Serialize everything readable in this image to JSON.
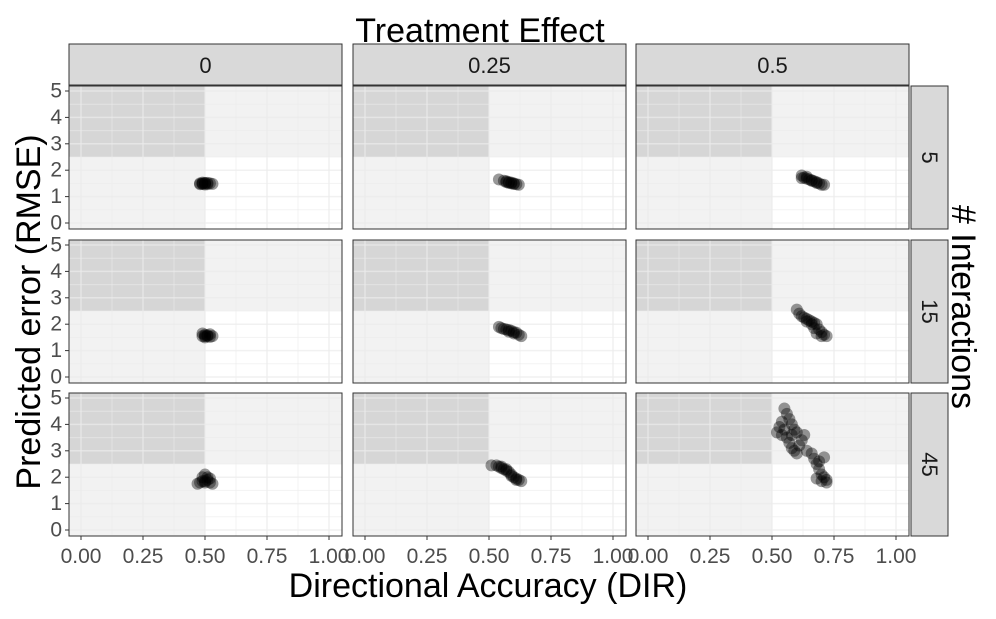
{
  "chart_data": {
    "type": "scatter",
    "facet_col_title": "Treatment Effect",
    "facet_row_title": "# Interactions",
    "xlabel": "Directional Accuracy (DIR)",
    "ylabel": "Predicted error (RMSE)",
    "xlim": [
      0,
      1
    ],
    "ylim": [
      0,
      5
    ],
    "x_ticks": [
      "0.00",
      "0.25",
      "0.50",
      "0.75",
      "1.00"
    ],
    "y_ticks": [
      "0",
      "1",
      "2",
      "3",
      "4",
      "5"
    ],
    "shaded_region": {
      "x": [
        0,
        0.5
      ],
      "y_from": 2.5
    },
    "column_labels": [
      "0",
      "0.25",
      "0.5"
    ],
    "row_labels": [
      "5",
      "15",
      "45"
    ],
    "grid": true,
    "colors": {
      "panel_bg": "#ffffff",
      "light_shade": "#f2f2f2",
      "dark_shade": "#d6d6d6",
      "strip_bg": "#d9d9d9",
      "grid": "#ebebeb",
      "point": "#000000"
    },
    "panels": [
      {
        "row": "5",
        "col": "0",
        "points": [
          [
            0.48,
            1.5
          ],
          [
            0.49,
            1.48
          ],
          [
            0.5,
            1.52
          ],
          [
            0.51,
            1.47
          ],
          [
            0.49,
            1.53
          ],
          [
            0.5,
            1.46
          ],
          [
            0.52,
            1.5
          ],
          [
            0.48,
            1.47
          ],
          [
            0.5,
            1.5
          ],
          [
            0.51,
            1.52
          ],
          [
            0.53,
            1.48
          ],
          [
            0.49,
            1.49
          ]
        ]
      },
      {
        "row": "5",
        "col": "0.25",
        "points": [
          [
            0.54,
            1.65
          ],
          [
            0.56,
            1.6
          ],
          [
            0.57,
            1.55
          ],
          [
            0.58,
            1.52
          ],
          [
            0.59,
            1.5
          ],
          [
            0.6,
            1.48
          ],
          [
            0.61,
            1.47
          ],
          [
            0.62,
            1.45
          ],
          [
            0.57,
            1.58
          ],
          [
            0.59,
            1.53
          ],
          [
            0.6,
            1.5
          ],
          [
            0.58,
            1.55
          ]
        ]
      },
      {
        "row": "5",
        "col": "0.5",
        "points": [
          [
            0.62,
            1.8
          ],
          [
            0.63,
            1.72
          ],
          [
            0.64,
            1.68
          ],
          [
            0.65,
            1.65
          ],
          [
            0.66,
            1.62
          ],
          [
            0.67,
            1.58
          ],
          [
            0.68,
            1.55
          ],
          [
            0.69,
            1.5
          ],
          [
            0.7,
            1.45
          ],
          [
            0.71,
            1.45
          ],
          [
            0.64,
            1.75
          ],
          [
            0.66,
            1.6
          ],
          [
            0.68,
            1.52
          ],
          [
            0.62,
            1.7
          ]
        ]
      },
      {
        "row": "15",
        "col": "0",
        "points": [
          [
            0.49,
            1.65
          ],
          [
            0.5,
            1.6
          ],
          [
            0.51,
            1.55
          ],
          [
            0.52,
            1.52
          ],
          [
            0.5,
            1.5
          ],
          [
            0.51,
            1.58
          ],
          [
            0.53,
            1.55
          ],
          [
            0.49,
            1.55
          ],
          [
            0.52,
            1.62
          ],
          [
            0.5,
            1.55
          ]
        ]
      },
      {
        "row": "15",
        "col": "0.25",
        "points": [
          [
            0.54,
            1.9
          ],
          [
            0.55,
            1.85
          ],
          [
            0.57,
            1.8
          ],
          [
            0.58,
            1.78
          ],
          [
            0.59,
            1.75
          ],
          [
            0.6,
            1.7
          ],
          [
            0.61,
            1.68
          ],
          [
            0.62,
            1.6
          ],
          [
            0.63,
            1.55
          ],
          [
            0.56,
            1.82
          ],
          [
            0.58,
            1.72
          ],
          [
            0.6,
            1.65
          ]
        ]
      },
      {
        "row": "15",
        "col": "0.5",
        "points": [
          [
            0.6,
            2.55
          ],
          [
            0.61,
            2.4
          ],
          [
            0.62,
            2.3
          ],
          [
            0.63,
            2.25
          ],
          [
            0.64,
            2.2
          ],
          [
            0.65,
            2.15
          ],
          [
            0.66,
            2.1
          ],
          [
            0.67,
            2.05
          ],
          [
            0.68,
            2.0
          ],
          [
            0.69,
            1.8
          ],
          [
            0.7,
            1.7
          ],
          [
            0.71,
            1.6
          ],
          [
            0.72,
            1.55
          ],
          [
            0.68,
            1.65
          ],
          [
            0.66,
            2.0
          ],
          [
            0.64,
            2.1
          ],
          [
            0.7,
            1.55
          ],
          [
            0.67,
            1.85
          ]
        ]
      },
      {
        "row": "45",
        "col": "0",
        "points": [
          [
            0.48,
            1.8
          ],
          [
            0.49,
            2.0
          ],
          [
            0.5,
            2.1
          ],
          [
            0.51,
            1.9
          ],
          [
            0.52,
            1.8
          ],
          [
            0.5,
            1.85
          ],
          [
            0.53,
            1.75
          ],
          [
            0.49,
            1.85
          ],
          [
            0.51,
            2.0
          ],
          [
            0.5,
            1.8
          ],
          [
            0.52,
            1.95
          ],
          [
            0.47,
            1.75
          ]
        ]
      },
      {
        "row": "45",
        "col": "0.25",
        "points": [
          [
            0.51,
            2.45
          ],
          [
            0.53,
            2.45
          ],
          [
            0.54,
            2.4
          ],
          [
            0.55,
            2.35
          ],
          [
            0.56,
            2.3
          ],
          [
            0.57,
            2.25
          ],
          [
            0.58,
            2.2
          ],
          [
            0.59,
            2.1
          ],
          [
            0.6,
            2.0
          ],
          [
            0.61,
            1.95
          ],
          [
            0.62,
            1.9
          ],
          [
            0.63,
            1.85
          ],
          [
            0.55,
            2.4
          ],
          [
            0.57,
            2.3
          ],
          [
            0.59,
            2.05
          ],
          [
            0.61,
            1.9
          ]
        ]
      },
      {
        "row": "45",
        "col": "0.5",
        "points": [
          [
            0.52,
            3.7
          ],
          [
            0.53,
            3.9
          ],
          [
            0.54,
            4.1
          ],
          [
            0.55,
            4.6
          ],
          [
            0.56,
            4.4
          ],
          [
            0.57,
            4.2
          ],
          [
            0.58,
            4.0
          ],
          [
            0.55,
            3.8
          ],
          [
            0.56,
            3.5
          ],
          [
            0.57,
            3.3
          ],
          [
            0.58,
            3.1
          ],
          [
            0.59,
            3.0
          ],
          [
            0.6,
            2.9
          ],
          [
            0.61,
            3.2
          ],
          [
            0.62,
            3.4
          ],
          [
            0.6,
            3.7
          ],
          [
            0.58,
            3.6
          ],
          [
            0.63,
            3.6
          ],
          [
            0.64,
            3.0
          ],
          [
            0.66,
            2.9
          ],
          [
            0.67,
            2.7
          ],
          [
            0.68,
            2.5
          ],
          [
            0.69,
            2.3
          ],
          [
            0.7,
            2.1
          ],
          [
            0.71,
            2.0
          ],
          [
            0.72,
            1.9
          ],
          [
            0.7,
            1.85
          ],
          [
            0.68,
            1.95
          ],
          [
            0.72,
            1.8
          ],
          [
            0.69,
            2.6
          ],
          [
            0.71,
            2.75
          ],
          [
            0.54,
            3.6
          ],
          [
            0.59,
            3.8
          ]
        ]
      }
    ]
  }
}
